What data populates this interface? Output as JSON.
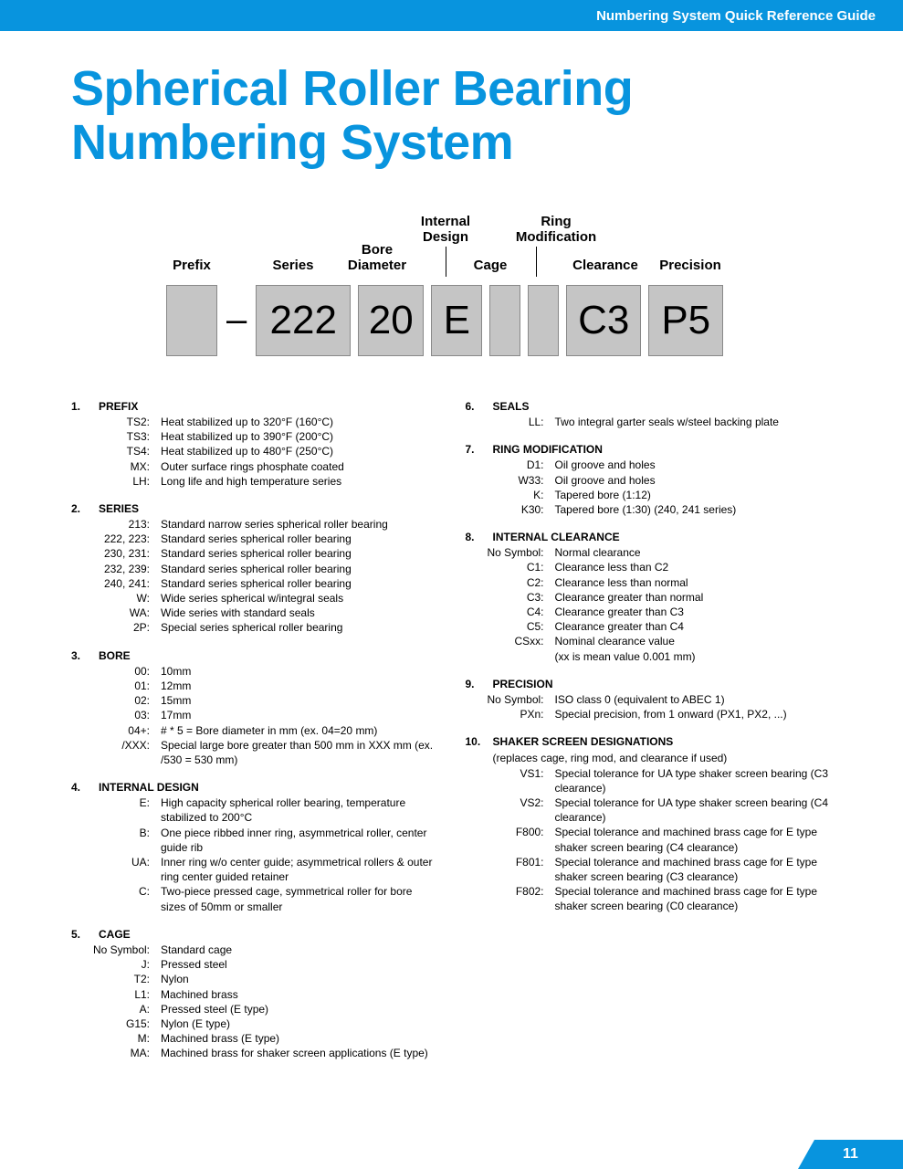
{
  "header": {
    "title": "Numbering System Quick Reference Guide"
  },
  "title_line1": "Spherical Roller Bearing",
  "title_line2": "Numbering System",
  "diagram": {
    "labels": {
      "prefix": "Prefix",
      "series": "Series",
      "bore": "Bore Diameter",
      "internal": "Internal Design",
      "cage": "Cage",
      "ringmod": "Ring Modification",
      "clearance": "Clearance",
      "precision": "Precision"
    },
    "dash": "–",
    "boxes": {
      "prefix": "",
      "series": "222",
      "bore": "20",
      "internal": "E",
      "cage": "",
      "ringmod": "",
      "clearance": "C3",
      "precision": "P5"
    }
  },
  "s1": {
    "title": "PREFIX",
    "num": "1.",
    "items": [
      {
        "c": "TS2:",
        "d": "Heat stabilized up to 320°F (160°C)"
      },
      {
        "c": "TS3:",
        "d": "Heat stabilized up to 390°F (200°C)"
      },
      {
        "c": "TS4:",
        "d": "Heat stabilized up to 480°F (250°C)"
      },
      {
        "c": "MX:",
        "d": "Outer surface rings phosphate coated"
      },
      {
        "c": "LH:",
        "d": "Long life and high temperature series"
      }
    ]
  },
  "s2": {
    "title": "SERIES",
    "num": "2.",
    "items": [
      {
        "c": "213:",
        "d": "Standard narrow series spherical roller bearing"
      },
      {
        "c": "222, 223:",
        "d": "Standard series spherical roller bearing"
      },
      {
        "c": "230, 231:",
        "d": "Standard series spherical roller bearing"
      },
      {
        "c": "232, 239:",
        "d": "Standard series spherical roller bearing"
      },
      {
        "c": "240, 241:",
        "d": "Standard series spherical roller bearing"
      },
      {
        "c": "W:",
        "d": "Wide series spherical w/integral seals"
      },
      {
        "c": "WA:",
        "d": "Wide series with standard seals"
      },
      {
        "c": "2P:",
        "d": "Special series spherical roller bearing"
      }
    ]
  },
  "s3": {
    "title": "BORE",
    "num": "3.",
    "items": [
      {
        "c": "00:",
        "d": "10mm"
      },
      {
        "c": "01:",
        "d": "12mm"
      },
      {
        "c": "02:",
        "d": "15mm"
      },
      {
        "c": "03:",
        "d": "17mm"
      },
      {
        "c": "04+:",
        "d": "# * 5 = Bore diameter in mm (ex. 04=20 mm)"
      },
      {
        "c": "/XXX:",
        "d": "Special large bore greater than 500 mm in XXX mm (ex. /530 = 530 mm)"
      }
    ]
  },
  "s4": {
    "title": "INTERNAL DESIGN",
    "num": "4.",
    "items": [
      {
        "c": "E:",
        "d": "High capacity spherical roller bearing, temperature stabilized to 200°C"
      },
      {
        "c": "B:",
        "d": "One piece ribbed inner ring, asymmetrical roller, center guide rib"
      },
      {
        "c": "UA:",
        "d": "Inner ring w/o center guide; asymmetrical rollers & outer ring center guided retainer"
      },
      {
        "c": "C:",
        "d": "Two-piece pressed cage, symmetrical roller for bore sizes of 50mm or smaller"
      }
    ]
  },
  "s5": {
    "title": "CAGE",
    "num": "5.",
    "items": [
      {
        "c": "No Symbol:",
        "d": "Standard cage"
      },
      {
        "c": "J:",
        "d": "Pressed steel"
      },
      {
        "c": "T2:",
        "d": "Nylon"
      },
      {
        "c": "L1:",
        "d": "Machined brass"
      },
      {
        "c": "A:",
        "d": "Pressed steel (E type)"
      },
      {
        "c": "G15:",
        "d": "Nylon (E type)"
      },
      {
        "c": "M:",
        "d": "Machined brass (E type)"
      },
      {
        "c": "MA:",
        "d": "Machined brass for shaker screen applications (E type)"
      }
    ]
  },
  "s6": {
    "title": "SEALS",
    "num": "6.",
    "items": [
      {
        "c": "LL:",
        "d": "Two integral garter seals w/steel backing plate"
      }
    ]
  },
  "s7": {
    "title": "RING MODIFICATION",
    "num": "7.",
    "items": [
      {
        "c": "D1:",
        "d": "Oil groove and holes"
      },
      {
        "c": "W33:",
        "d": "Oil groove and holes"
      },
      {
        "c": "K:",
        "d": "Tapered bore (1:12)"
      },
      {
        "c": "K30:",
        "d": "Tapered bore (1:30) (240, 241 series)"
      }
    ]
  },
  "s8": {
    "title": "INTERNAL CLEARANCE",
    "num": "8.",
    "items": [
      {
        "c": "No Symbol:",
        "d": "Normal clearance"
      },
      {
        "c": "C1:",
        "d": "Clearance less than C2"
      },
      {
        "c": "C2:",
        "d": "Clearance less than normal"
      },
      {
        "c": "C3:",
        "d": "Clearance greater than normal"
      },
      {
        "c": "C4:",
        "d": "Clearance greater than C3"
      },
      {
        "c": "C5:",
        "d": "Clearance greater than C4"
      },
      {
        "c": "CSxx:",
        "d": "Nominal clearance value"
      },
      {
        "c": "",
        "d": "(xx is mean value 0.001 mm)"
      }
    ]
  },
  "s9": {
    "title": "PRECISION",
    "num": "9.",
    "items": [
      {
        "c": "No Symbol:",
        "d": "ISO class 0 (equivalent to ABEC 1)"
      },
      {
        "c": "PXn:",
        "d": "Special precision, from 1 onward (PX1, PX2, ...)"
      }
    ]
  },
  "s10": {
    "title": "SHAKER SCREEN DESIGNATIONS",
    "num": "10.",
    "note": "(replaces cage, ring mod, and clearance if used)",
    "items": [
      {
        "c": "VS1:",
        "d": "Special tolerance for UA type shaker screen bearing (C3 clearance)"
      },
      {
        "c": "VS2:",
        "d": "Special tolerance for UA type shaker screen bearing (C4 clearance)"
      },
      {
        "c": "F800:",
        "d": "Special tolerance and machined brass cage for E type shaker screen bearing (C4 clearance)"
      },
      {
        "c": "F801:",
        "d": "Special tolerance and machined brass cage for E type shaker screen bearing (C3 clearance)"
      },
      {
        "c": "F802:",
        "d": "Special tolerance and machined brass cage for E type shaker screen bearing (C0 clearance)"
      }
    ]
  },
  "page_number": "11",
  "colors": {
    "brand": "#0894de",
    "box_bg": "#c5c5c5"
  }
}
